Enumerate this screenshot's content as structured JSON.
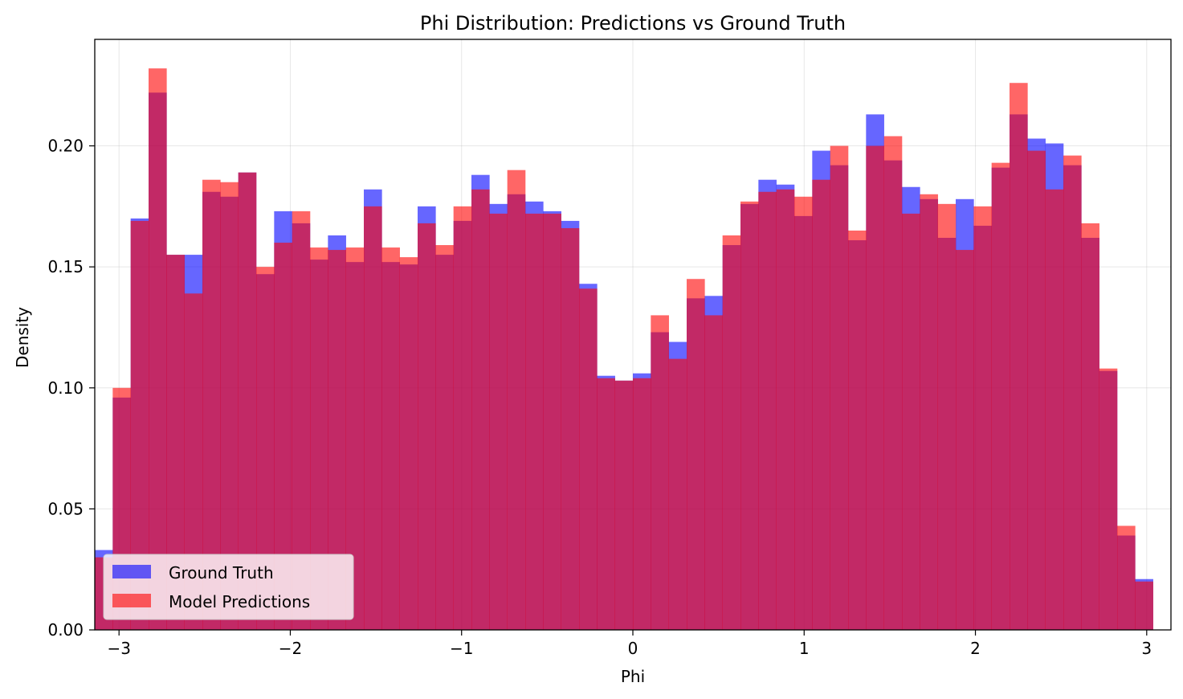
{
  "chart_data": {
    "type": "bar",
    "title": "Phi Distribution: Predictions vs Ground Truth",
    "xlabel": "Phi",
    "ylabel": "Density",
    "xlim": [
      -3.1416,
      3.1416
    ],
    "ylim": [
      0,
      0.244
    ],
    "xticks": [
      -3,
      -2,
      -1,
      0,
      1,
      2,
      3
    ],
    "xtick_labels": [
      "−3",
      "−2",
      "−1",
      "0",
      "1",
      "2",
      "3"
    ],
    "yticks": [
      0,
      0.05,
      0.1,
      0.15,
      0.2
    ],
    "ytick_labels": [
      "0.00",
      "0.05",
      "0.10",
      "0.15",
      "0.20"
    ],
    "grid": true,
    "legend_position": "lower-left",
    "bins": 60,
    "series": [
      {
        "name": "Ground Truth",
        "color": "#0000ff",
        "alpha": 0.6,
        "values": [
          0.033,
          0.096,
          0.17,
          0.222,
          0.155,
          0.155,
          0.181,
          0.179,
          0.189,
          0.147,
          0.173,
          0.168,
          0.153,
          0.163,
          0.152,
          0.182,
          0.152,
          0.151,
          0.175,
          0.155,
          0.169,
          0.188,
          0.176,
          0.18,
          0.177,
          0.173,
          0.169,
          0.143,
          0.105,
          0.103,
          0.106,
          0.123,
          0.119,
          0.137,
          0.138,
          0.159,
          0.176,
          0.186,
          0.184,
          0.171,
          0.198,
          0.192,
          0.161,
          0.213,
          0.194,
          0.183,
          0.178,
          0.162,
          0.178,
          0.167,
          0.191,
          0.213,
          0.203,
          0.201,
          0.192,
          0.162,
          0.107,
          0.039,
          0.021
        ]
      },
      {
        "name": "Model Predictions",
        "color": "#ff0000",
        "alpha": 0.6,
        "values": [
          0.03,
          0.1,
          0.169,
          0.232,
          0.155,
          0.139,
          0.186,
          0.185,
          0.189,
          0.15,
          0.16,
          0.173,
          0.158,
          0.157,
          0.158,
          0.175,
          0.158,
          0.154,
          0.168,
          0.159,
          0.175,
          0.182,
          0.172,
          0.19,
          0.172,
          0.172,
          0.166,
          0.141,
          0.104,
          0.103,
          0.104,
          0.13,
          0.112,
          0.145,
          0.13,
          0.163,
          0.177,
          0.181,
          0.182,
          0.179,
          0.186,
          0.2,
          0.165,
          0.2,
          0.204,
          0.172,
          0.18,
          0.176,
          0.157,
          0.175,
          0.193,
          0.226,
          0.198,
          0.182,
          0.196,
          0.168,
          0.108,
          0.043,
          0.02
        ]
      }
    ]
  }
}
